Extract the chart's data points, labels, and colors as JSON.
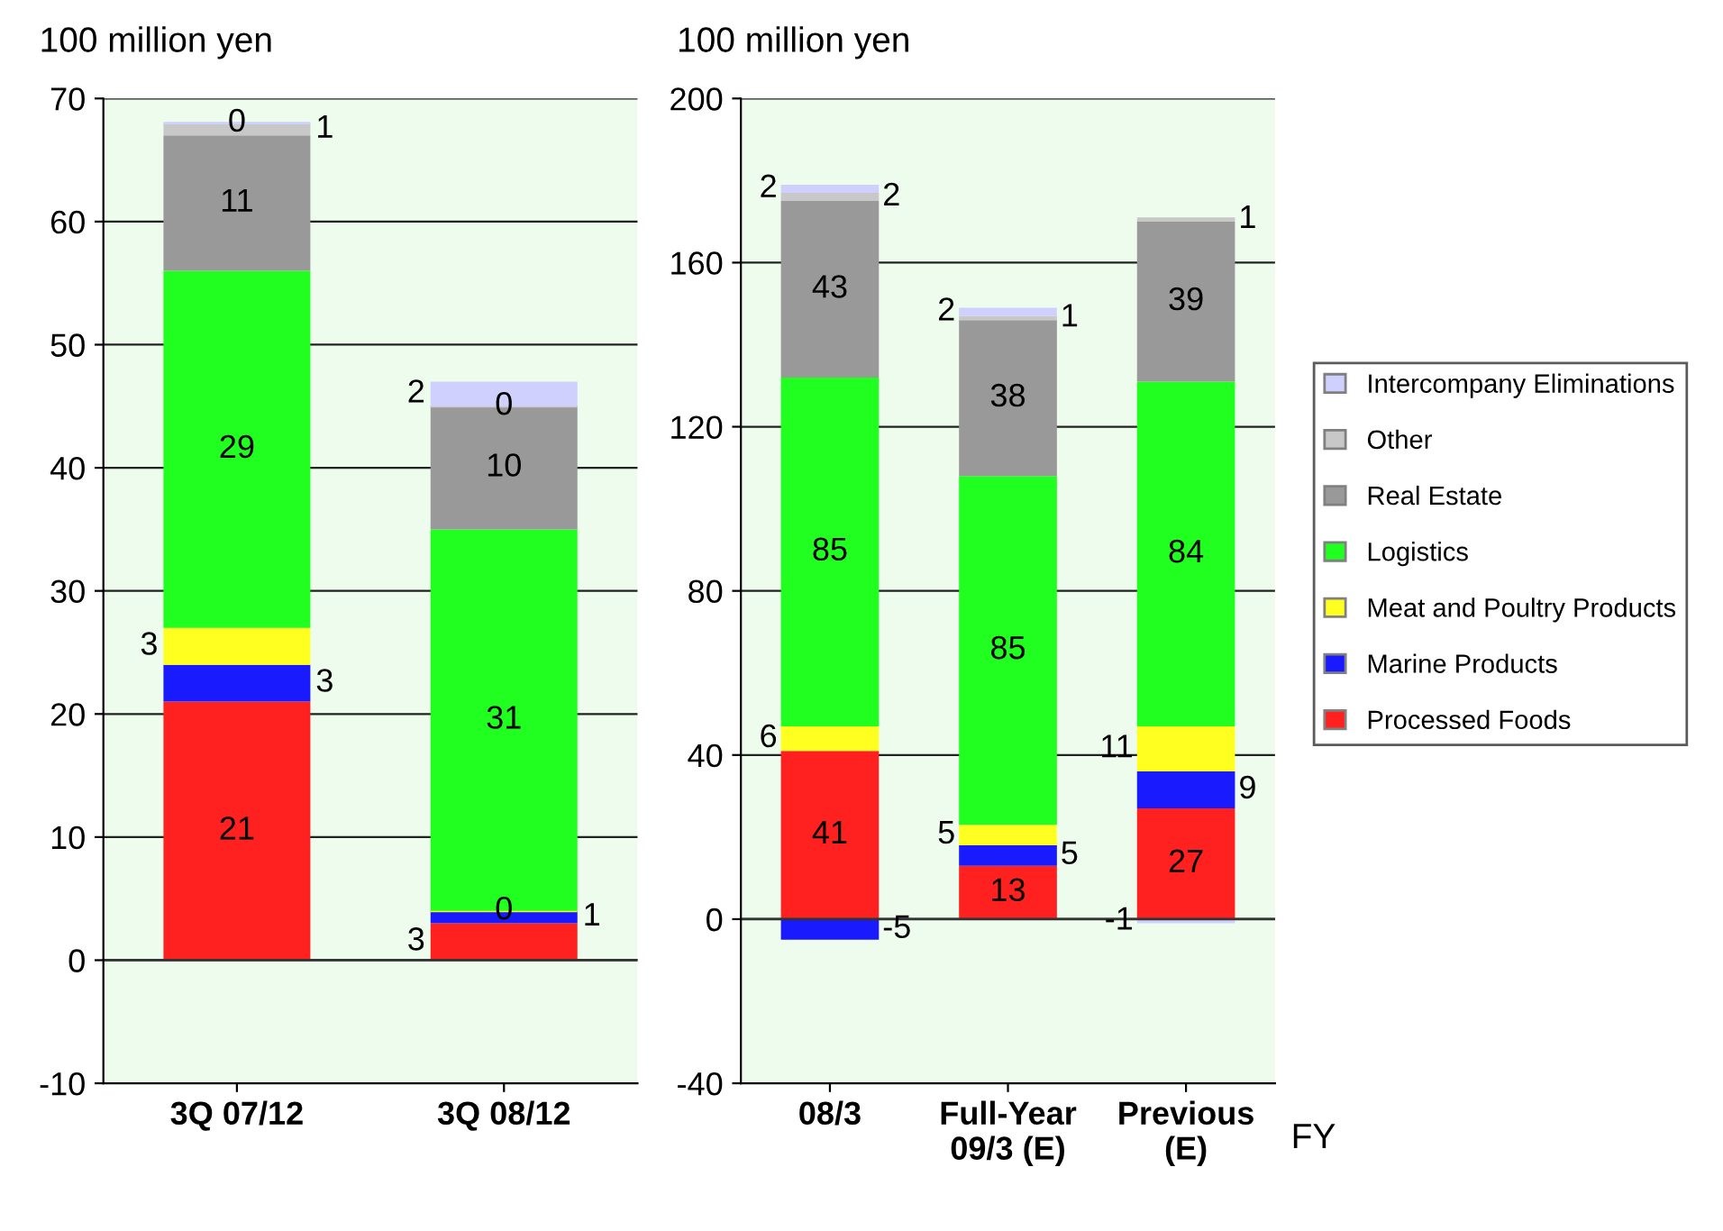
{
  "chart_data": [
    {
      "type": "bar",
      "stacked": true,
      "ylabel": "100 million yen",
      "categories": [
        "3Q 07/12",
        "3Q 08/12"
      ],
      "ylim": [
        -10,
        70
      ],
      "yticks": [
        -10,
        0,
        10,
        20,
        30,
        40,
        50,
        60,
        70
      ],
      "grid": "y",
      "data_labels": true,
      "series": [
        {
          "color": "#ff2020",
          "values": [
            21,
            3
          ]
        },
        {
          "color": "#1a1aff",
          "values": [
            3,
            1
          ]
        },
        {
          "color": "#ffff20",
          "values": [
            3,
            0
          ]
        },
        {
          "color": "#20ff20",
          "values": [
            29,
            31
          ]
        },
        {
          "color": "#999999",
          "values": [
            11,
            10
          ]
        },
        {
          "color": "#c8c8c8",
          "values": [
            1,
            0
          ]
        },
        {
          "color": "#d0d0ff",
          "values": [
            0,
            2
          ]
        }
      ]
    },
    {
      "type": "bar",
      "stacked": true,
      "ylabel": "100 million yen",
      "xlabel": "FY",
      "categories": [
        "08/3",
        "Full-Year\n09/3 (E)",
        "Previous\n(E)"
      ],
      "ylim": [
        -40,
        200
      ],
      "yticks": [
        -40,
        0,
        40,
        80,
        120,
        160,
        200
      ],
      "grid": "y",
      "data_labels": true,
      "legend": "right",
      "series": [
        {
          "name": "Processed Foods",
          "color": "#ff2020",
          "values": [
            41,
            13,
            27
          ]
        },
        {
          "name": "Marine Products",
          "color": "#1a1aff",
          "values": [
            -5,
            5,
            9
          ]
        },
        {
          "name": "Meat and Poultry Products",
          "color": "#ffff20",
          "values": [
            6,
            5,
            11
          ]
        },
        {
          "name": "Logistics",
          "color": "#20ff20",
          "values": [
            85,
            85,
            84
          ]
        },
        {
          "name": "Real Estate",
          "color": "#999999",
          "values": [
            43,
            38,
            39
          ]
        },
        {
          "name": "Other",
          "color": "#c8c8c8",
          "values": [
            2,
            1,
            1
          ]
        },
        {
          "name": "Intercompany Eliminations",
          "color": "#d0d0ff",
          "values": [
            2,
            2,
            -1
          ]
        }
      ]
    }
  ]
}
